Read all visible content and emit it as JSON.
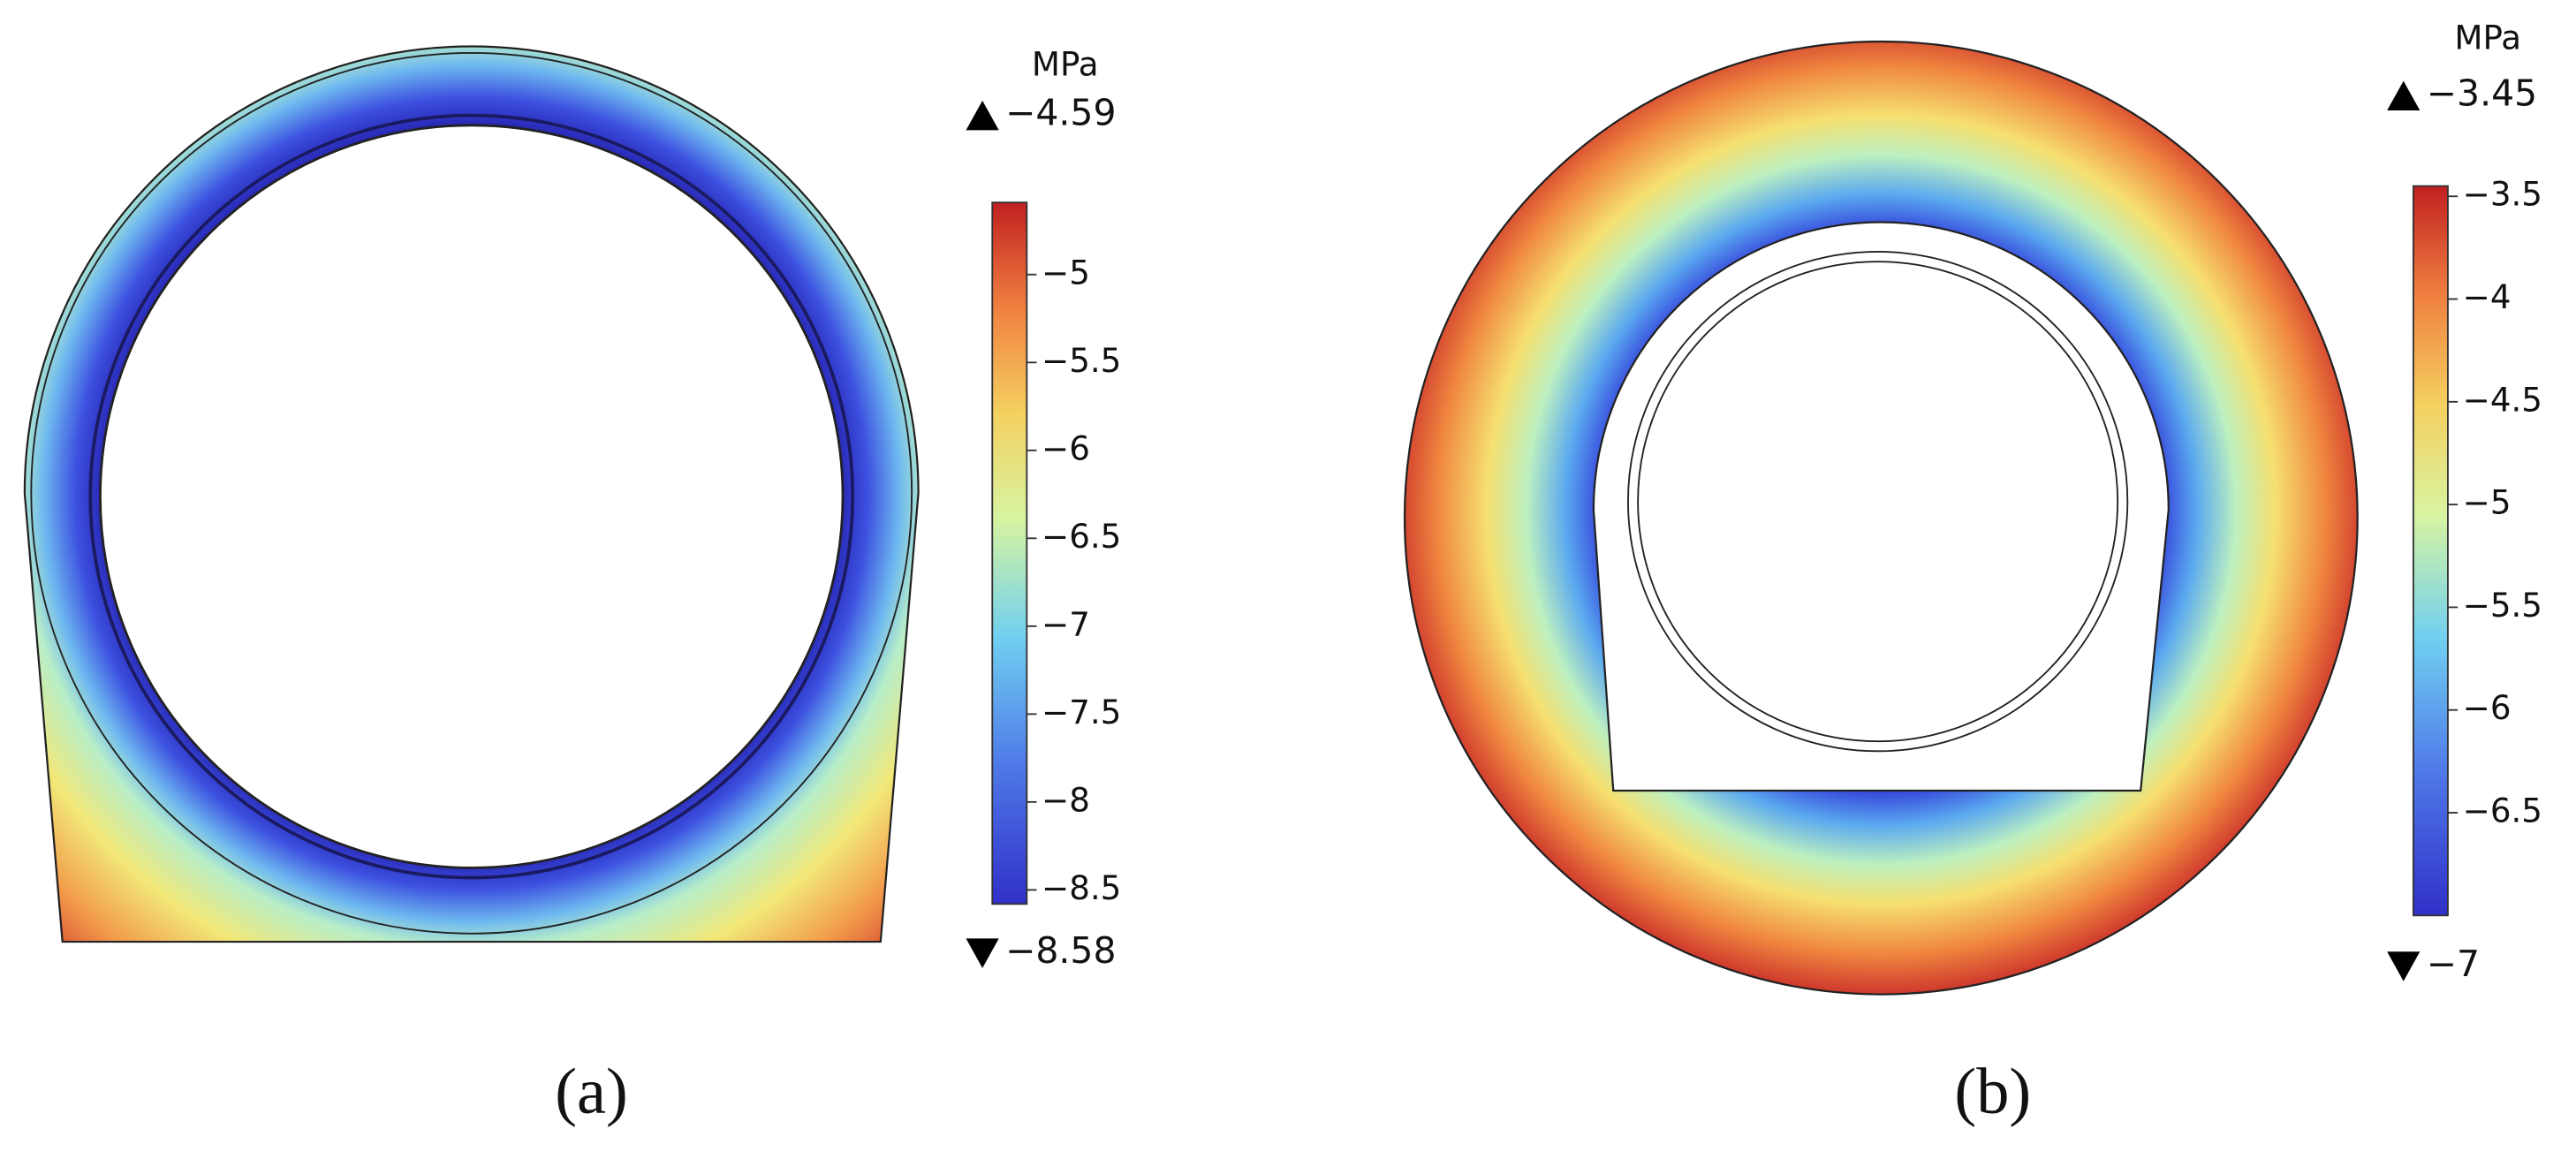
{
  "panels": [
    {
      "label": "(a)",
      "unit": "MPa",
      "max": {
        "value": -4.59,
        "label": "−4.59"
      },
      "min": {
        "value": -8.58,
        "label": "−8.58"
      },
      "colorbar_ticks": [
        {
          "value": -5,
          "label": "−5"
        },
        {
          "value": -5.5,
          "label": "−5.5"
        },
        {
          "value": -6,
          "label": "−6"
        },
        {
          "value": -6.5,
          "label": "−6.5"
        },
        {
          "value": -7,
          "label": "−7"
        },
        {
          "value": -7.5,
          "label": "−7.5"
        },
        {
          "value": -8,
          "label": "−8"
        },
        {
          "value": -8.5,
          "label": "−8.5"
        }
      ]
    },
    {
      "label": "(b)",
      "unit": "MPa",
      "max": {
        "value": -3.45,
        "label": "−3.45"
      },
      "min": {
        "value": -7,
        "label": "−7"
      },
      "colorbar_ticks": [
        {
          "value": -3.5,
          "label": "−3.5"
        },
        {
          "value": -4,
          "label": "−4"
        },
        {
          "value": -4.5,
          "label": "−4.5"
        },
        {
          "value": -5,
          "label": "−5"
        },
        {
          "value": -5.5,
          "label": "−5.5"
        },
        {
          "value": -6,
          "label": "−6"
        },
        {
          "value": -6.5,
          "label": "−6.5"
        }
      ]
    }
  ]
}
